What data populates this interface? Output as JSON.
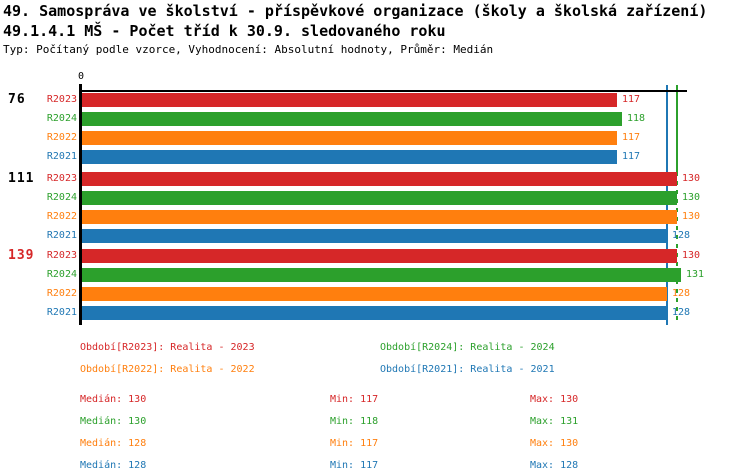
{
  "title": {
    "line1": "49. Samospráva ve školství - příspěvkové organizace (školy a školská zařízení)",
    "line2": "49.1.4.1 MŠ - Počet tříd k 30.9. sledovaného roku",
    "line3": "Typ: Počítaný podle vzorce, Vyhodnocení: Absolutní hodnoty, Průměr: Medián"
  },
  "colors": {
    "R2023": "#d62728",
    "R2024": "#2ca02c",
    "R2022": "#ff7f0e",
    "R2021": "#1f77b4",
    "highlight_group": "#d62728",
    "normal_group": "#000000",
    "axis": "#000000"
  },
  "chart_data": {
    "type": "bar",
    "orientation": "horizontal",
    "x_axis": {
      "origin_label": "0",
      "xlim": [
        0,
        146
      ]
    },
    "series_order": [
      "R2023",
      "R2024",
      "R2022",
      "R2021"
    ],
    "groups": [
      {
        "id": "76",
        "highlighted": false,
        "bars": [
          {
            "series": "R2023",
            "value": 117
          },
          {
            "series": "R2024",
            "value": 118
          },
          {
            "series": "R2022",
            "value": 117
          },
          {
            "series": "R2021",
            "value": 117
          }
        ]
      },
      {
        "id": "111",
        "highlighted": false,
        "bars": [
          {
            "series": "R2023",
            "value": 130
          },
          {
            "series": "R2024",
            "value": 130
          },
          {
            "series": "R2022",
            "value": 130
          },
          {
            "series": "R2021",
            "value": 128
          }
        ]
      },
      {
        "id": "139",
        "highlighted": true,
        "bars": [
          {
            "series": "R2023",
            "value": 130
          },
          {
            "series": "R2024",
            "value": 131
          },
          {
            "series": "R2022",
            "value": 128
          },
          {
            "series": "R2021",
            "value": 128
          }
        ]
      }
    ],
    "reference_lines": [
      {
        "value": 128,
        "color": "#1f77b4",
        "style": "solid"
      },
      {
        "value": 130,
        "color": "#2ca02c",
        "style": "dashed"
      }
    ]
  },
  "legend": {
    "items": [
      {
        "series": "R2023",
        "label": "Období[R2023]: Realita - 2023"
      },
      {
        "series": "R2024",
        "label": "Období[R2024]: Realita - 2024"
      },
      {
        "series": "R2022",
        "label": "Období[R2022]: Realita - 2022"
      },
      {
        "series": "R2021",
        "label": "Období[R2021]: Realita - 2021"
      }
    ]
  },
  "stats": {
    "median_label": "Medián",
    "min_label": "Min",
    "max_label": "Max",
    "rows": [
      {
        "series": "R2023",
        "median": 130,
        "min": 117,
        "max": 130
      },
      {
        "series": "R2024",
        "median": 130,
        "min": 118,
        "max": 131
      },
      {
        "series": "R2022",
        "median": 128,
        "min": 117,
        "max": 130
      },
      {
        "series": "R2021",
        "median": 128,
        "min": 117,
        "max": 128
      }
    ]
  }
}
